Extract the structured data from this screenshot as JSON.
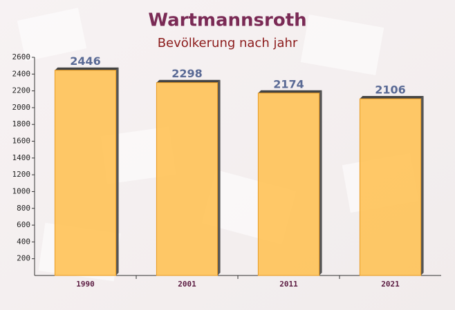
{
  "chart_data": {
    "type": "bar",
    "title": "Wartmannsroth",
    "subtitle": "Bevölkerung nach jahr",
    "categories": [
      "1990",
      "2001",
      "2011",
      "2021"
    ],
    "values": [
      2446,
      2298,
      2174,
      2106
    ],
    "color": "#ffc04d",
    "ylim": [
      0,
      2600
    ],
    "yticks": [
      200,
      400,
      600,
      800,
      1000,
      1200,
      1400,
      1600,
      1800,
      2000,
      2200,
      2400,
      2600
    ],
    "grid": false
  }
}
